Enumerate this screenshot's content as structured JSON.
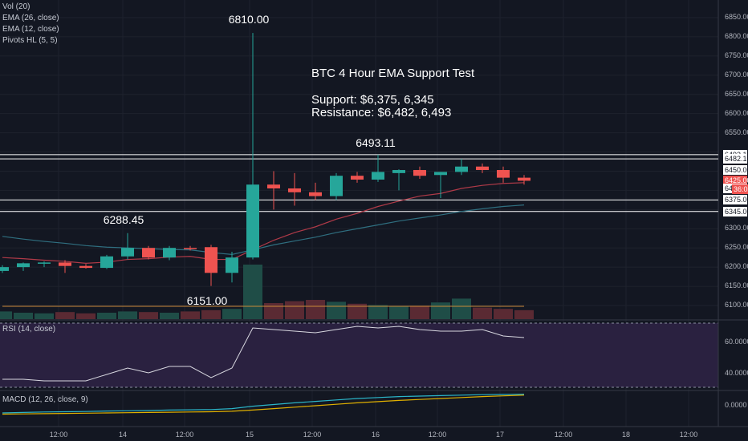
{
  "legend": {
    "vol": "Vol (20)",
    "ema26": "EMA (26, close)",
    "ema12": "EMA (12, close)",
    "pivots": "Pivots HL (5, 5)",
    "rsi": "RSI (14, close)",
    "macd": "MACD (12, 26, close, 9)"
  },
  "note": {
    "title": "BTC 4 Hour EMA Support Test",
    "support": "Support: $6,375, 6,345",
    "resistance": "Resistance: $6,482, 6,493"
  },
  "pivot_labels": {
    "high_spike": "6810.00",
    "high_right": "6493.11",
    "high_left": "6288.45",
    "low": "6151.00"
  },
  "price_axis": [
    "6850.00",
    "6800.00",
    "6750.00",
    "6700.00",
    "6650.00",
    "6600.00",
    "6550.00",
    "6300.00",
    "6250.00",
    "6200.00",
    "6150.00",
    "6100.00"
  ],
  "price_tags": [
    {
      "text": "6493.11",
      "price": 6493.11,
      "bg": "#ffffff",
      "fg": "#131722"
    },
    {
      "text": "6482.10",
      "price": 6482.1,
      "bg": "#ffffff",
      "fg": "#131722"
    },
    {
      "text": "6450.00",
      "price": 6453,
      "bg": "#ffffff",
      "fg": "#131722"
    },
    {
      "text": "6425.00",
      "price": 6425,
      "bg": "#ef5350",
      "fg": "#ffffff"
    },
    {
      "text": "6405.00",
      "price": 6405,
      "bg": "#ffffff",
      "fg": "#131722"
    },
    {
      "text": "36:05",
      "price": 6403,
      "bg": "#ef5350",
      "fg": "#ffffff"
    },
    {
      "text": "6375.00",
      "price": 6375,
      "bg": "#ffffff",
      "fg": "#131722"
    },
    {
      "text": "6345.00",
      "price": 6345,
      "bg": "#ffffff",
      "fg": "#131722"
    }
  ],
  "rsi_axis": [
    "60.0000",
    "40.0000"
  ],
  "macd_axis": [
    "0.0000"
  ],
  "x_labels": [
    "12:00",
    "14",
    "12:00",
    "15",
    "12:00",
    "16",
    "12:00",
    "17",
    "12:00",
    "18",
    "12:00"
  ],
  "colors": {
    "up": "#26a69a",
    "down": "#ef5350",
    "ema26": "#2f6f80",
    "ema12": "#b03a48",
    "rsi": "#d8d8e0",
    "macd": "#2bb5c8",
    "signal": "#e0b000",
    "hline": "#ffffff",
    "rsi_bg": "#2a2140"
  },
  "chart_data": {
    "type": "candlestick",
    "title": "BTC 4 Hour EMA Support Test",
    "ylim": [
      6060,
      6880
    ],
    "support_levels": [
      6375,
      6345
    ],
    "resistance_levels": [
      6482,
      6493
    ],
    "candles": [
      {
        "o": 6190,
        "h": 6205,
        "l": 6185,
        "c": 6200
      },
      {
        "o": 6200,
        "h": 6212,
        "l": 6190,
        "c": 6210
      },
      {
        "o": 6210,
        "h": 6215,
        "l": 6200,
        "c": 6212
      },
      {
        "o": 6212,
        "h": 6218,
        "l": 6185,
        "c": 6203
      },
      {
        "o": 6203,
        "h": 6208,
        "l": 6196,
        "c": 6198
      },
      {
        "o": 6198,
        "h": 6232,
        "l": 6195,
        "c": 6228
      },
      {
        "o": 6228,
        "h": 6288.45,
        "l": 6220,
        "c": 6250
      },
      {
        "o": 6250,
        "h": 6255,
        "l": 6220,
        "c": 6225
      },
      {
        "o": 6225,
        "h": 6255,
        "l": 6218,
        "c": 6250
      },
      {
        "o": 6250,
        "h": 6255,
        "l": 6243,
        "c": 6248
      },
      {
        "o": 6252,
        "h": 6258,
        "l": 6151,
        "c": 6185
      },
      {
        "o": 6185,
        "h": 6240,
        "l": 6160,
        "c": 6225
      },
      {
        "o": 6225,
        "h": 6810,
        "l": 6220,
        "c": 6415
      },
      {
        "o": 6415,
        "h": 6450,
        "l": 6350,
        "c": 6405
      },
      {
        "o": 6405,
        "h": 6445,
        "l": 6360,
        "c": 6395
      },
      {
        "o": 6395,
        "h": 6420,
        "l": 6375,
        "c": 6385
      },
      {
        "o": 6385,
        "h": 6445,
        "l": 6375,
        "c": 6438
      },
      {
        "o": 6438,
        "h": 6448,
        "l": 6420,
        "c": 6428
      },
      {
        "o": 6428,
        "h": 6493.11,
        "l": 6422,
        "c": 6448
      },
      {
        "o": 6445,
        "h": 6455,
        "l": 6400,
        "c": 6453
      },
      {
        "o": 6453,
        "h": 6462,
        "l": 6430,
        "c": 6438
      },
      {
        "o": 6440,
        "h": 6448,
        "l": 6380,
        "c": 6448
      },
      {
        "o": 6448,
        "h": 6482,
        "l": 6440,
        "c": 6462
      },
      {
        "o": 6462,
        "h": 6470,
        "l": 6445,
        "c": 6453
      },
      {
        "o": 6453,
        "h": 6462,
        "l": 6420,
        "c": 6433
      },
      {
        "o": 6433,
        "h": 6440,
        "l": 6415,
        "c": 6425
      }
    ],
    "volume": [
      12,
      10,
      9,
      11,
      9,
      10,
      12,
      11,
      10,
      12,
      14,
      16,
      85,
      25,
      28,
      30,
      27,
      24,
      22,
      20,
      21,
      26,
      32,
      18,
      16,
      14
    ],
    "ema26": [
      6280,
      6273,
      6267,
      6262,
      6256,
      6252,
      6250,
      6248,
      6246,
      6245,
      6238,
      6233,
      6245,
      6258,
      6268,
      6278,
      6290,
      6300,
      6310,
      6320,
      6328,
      6336,
      6345,
      6352,
      6358,
      6362
    ],
    "ema12": [
      6225,
      6222,
      6218,
      6215,
      6210,
      6213,
      6220,
      6222,
      6226,
      6228,
      6220,
      6220,
      6245,
      6270,
      6290,
      6305,
      6325,
      6340,
      6358,
      6372,
      6385,
      6392,
      6405,
      6413,
      6418,
      6420
    ],
    "rsi": [
      35,
      35,
      34,
      34,
      34,
      38,
      42,
      39,
      43,
      43,
      36,
      42,
      67,
      66,
      65,
      64,
      66,
      68,
      67,
      68,
      66,
      65,
      65,
      66,
      62,
      61
    ],
    "macd": [
      10,
      12,
      14,
      15,
      16,
      18,
      19,
      20,
      22,
      23,
      24,
      28,
      38,
      45,
      52,
      58,
      64,
      70,
      74,
      78,
      80,
      82,
      84,
      86,
      87,
      88
    ],
    "signal": [
      5,
      6,
      7,
      8,
      9,
      10,
      11,
      12,
      13,
      14,
      15,
      17,
      22,
      28,
      34,
      40,
      46,
      52,
      57,
      62,
      66,
      70,
      74,
      78,
      81,
      84
    ]
  }
}
